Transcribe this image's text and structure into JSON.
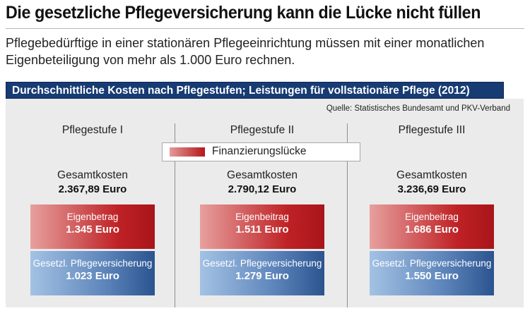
{
  "headline": "Die gesetzliche Pflegeversicherung kann die Lücke nicht füllen",
  "subtitle": "Pflegebedürftige in einer stationären Pflegeeinrichtung müssen mit einer monatlichen Eigenbeteiligung von mehr als 1.000 Euro rechnen.",
  "colors": {
    "banner": "#173b73",
    "eigenbetrag": "#bf2226",
    "pflegeversicherung": "#5d85bb",
    "panel": "#ebebeb"
  },
  "chart_data": {
    "type": "bar",
    "title": "Durchschnittliche Kosten nach Pflegestufen; Leistungen für vollstationäre Pflege (2012)",
    "source": "Quelle: Statistisches Bundesamt und PKV-Verband",
    "legend": [
      "Finanzierungslücke"
    ],
    "total_label": "Gesamtkosten",
    "categories": [
      "Pflegestufe I",
      "Pflegestufe II",
      "Pflegestufe III"
    ],
    "totals": [
      "2.367,89 Euro",
      "2.790,12 Euro",
      "3.236,69 Euro"
    ],
    "series": [
      {
        "labels": [
          "Eigenbetrag",
          "Eigenbeitrag",
          "Eigenbeitrag"
        ],
        "values": [
          1345,
          1511,
          1686
        ],
        "value_labels": [
          "1.345 Euro",
          "1.511 Euro",
          "1.686 Euro"
        ]
      },
      {
        "labels": [
          "Gesetzl. Pflegeversicherung",
          "Gesetzl. Pflegeversicherung",
          "Gesetzl. Pflegeversicherung"
        ],
        "values": [
          1023,
          1279,
          1550
        ],
        "value_labels": [
          "1.023 Euro",
          "1.279 Euro",
          "1.550 Euro"
        ]
      }
    ]
  }
}
